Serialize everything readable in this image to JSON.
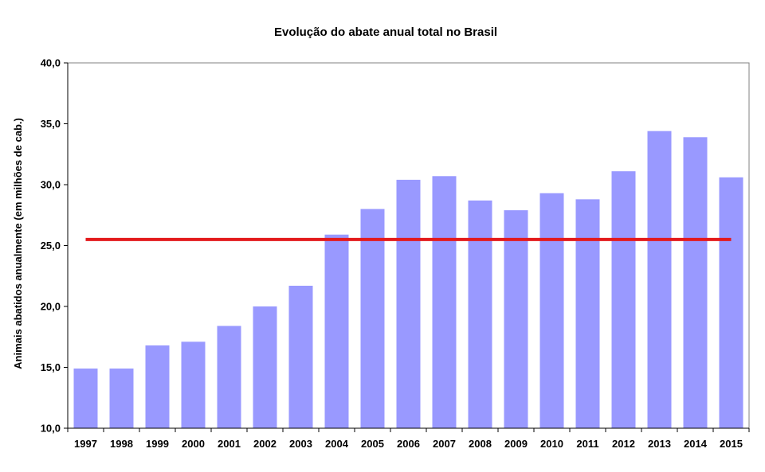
{
  "chart_data": {
    "type": "bar",
    "title": "Evolução do abate anual  total no Brasil",
    "xlabel": "",
    "ylabel": "Animais abatidos anualmente (em milhões de cab.)",
    "ylim": [
      10,
      40
    ],
    "ytick_labels": [
      "10,0",
      "15,0",
      "20,0",
      "25,0",
      "30,0",
      "35,0",
      "40,0"
    ],
    "yticks": [
      10,
      15,
      20,
      25,
      30,
      35,
      40
    ],
    "categories": [
      "1997",
      "1998",
      "1999",
      "2000",
      "2001",
      "2002",
      "2003",
      "2004",
      "2005",
      "2006",
      "2007",
      "2008",
      "2009",
      "2010",
      "2011",
      "2012",
      "2013",
      "2014",
      "2015"
    ],
    "values": [
      14.9,
      14.9,
      16.8,
      17.1,
      18.4,
      20.0,
      21.7,
      25.9,
      28.0,
      30.4,
      30.7,
      28.7,
      27.9,
      29.3,
      28.8,
      31.1,
      34.4,
      33.9,
      30.6
    ],
    "average_line": 25.5,
    "grid": false,
    "legend": "none",
    "colors": {
      "bar": "#9999ff",
      "average_line": "#e31a1c",
      "axis": "#000000"
    }
  }
}
